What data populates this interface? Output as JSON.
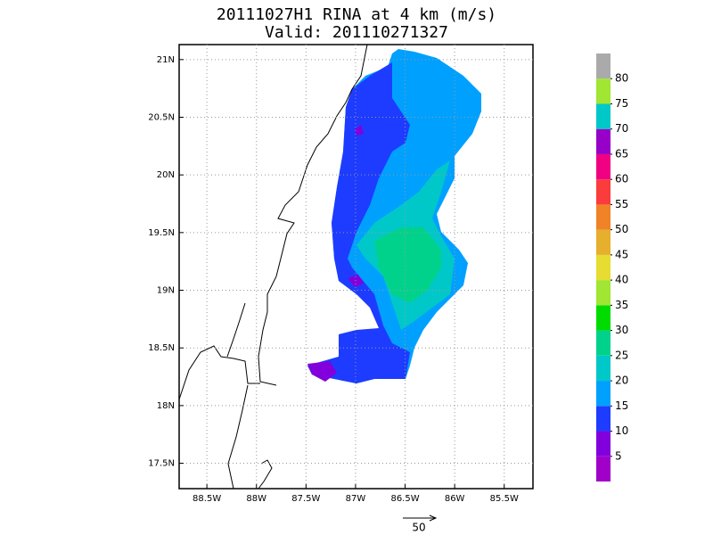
{
  "title": "20111027H1 RINA at 4 km (m/s)",
  "subtitle": "Valid: 201110271327",
  "map": {
    "xlim": [
      -88.78,
      -85.21
    ],
    "ylim": [
      17.28,
      21.13
    ],
    "xticks": [
      {
        "value": -88.5,
        "label": "88.5W"
      },
      {
        "value": -88,
        "label": "88W"
      },
      {
        "value": -87.5,
        "label": "87.5W"
      },
      {
        "value": -87,
        "label": "87W"
      },
      {
        "value": -86.5,
        "label": "86.5W"
      },
      {
        "value": -86,
        "label": "86W"
      },
      {
        "value": -85.5,
        "label": "85.5W"
      }
    ],
    "yticks": [
      {
        "value": 17.5,
        "label": "17.5N"
      },
      {
        "value": 18,
        "label": "18N"
      },
      {
        "value": 18.5,
        "label": "18.5N"
      },
      {
        "value": 19,
        "label": "19N"
      },
      {
        "value": 19.5,
        "label": "19.5N"
      },
      {
        "value": 20,
        "label": "20N"
      },
      {
        "value": 20.5,
        "label": "20.5N"
      },
      {
        "value": 21,
        "label": "21N"
      }
    ],
    "grid": true
  },
  "colorbar": {
    "levels": [
      5,
      10,
      15,
      20,
      25,
      30,
      35,
      40,
      45,
      50,
      55,
      60,
      65,
      70,
      75,
      80
    ],
    "colors": [
      "#a000c8",
      "#8200dc",
      "#1e3cff",
      "#00a0ff",
      "#00c8c8",
      "#00d28c",
      "#00dc00",
      "#a0e632",
      "#e6dc32",
      "#e6af2d",
      "#f08228",
      "#fa3c3c",
      "#f00082",
      "#9600c8",
      "#00c8c8",
      "#a0e632",
      "#aaaaaa"
    ]
  },
  "reference_vector": {
    "value": 50
  }
}
